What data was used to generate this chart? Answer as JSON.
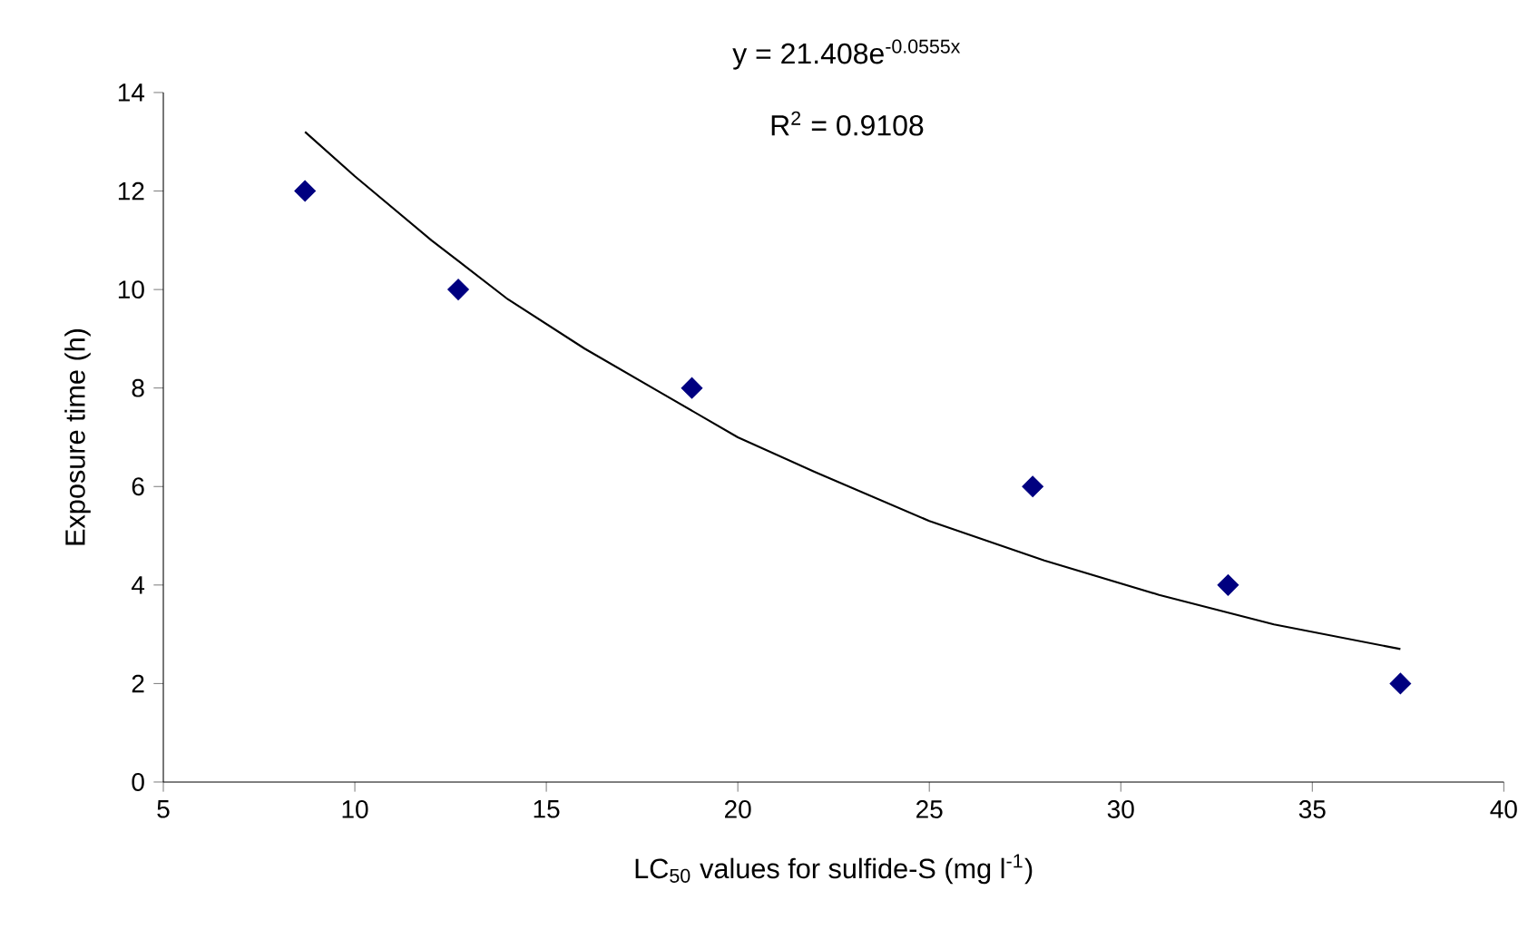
{
  "chart_data": {
    "type": "scatter",
    "xlabel": "LC$_{50}$ values for sulfide-S (mg l$^{-1}$)",
    "ylabel": "Exposure time (h)",
    "annotations": [
      "y = 21.408e$^{-0.0555x}$",
      "R$^{2}$ = 0.9108"
    ],
    "x": [
      8.7,
      12.7,
      18.8,
      27.7,
      32.8,
      37.3
    ],
    "series": [
      {
        "color": "#000080",
        "marker": "diamond",
        "values": [
          12,
          10,
          8,
          6,
          4,
          2
        ]
      },
      {
        "type": "line",
        "color": "#000000",
        "marker": "none",
        "line_style": "solid",
        "x": [
          8.7,
          10,
          12,
          14,
          16,
          18,
          20,
          22,
          25,
          28,
          31,
          34,
          37.3
        ],
        "values": [
          13.2,
          12.3,
          11.0,
          9.8,
          8.8,
          7.9,
          7.0,
          6.3,
          5.3,
          4.5,
          3.8,
          3.2,
          2.7
        ]
      }
    ],
    "xlim": [
      5,
      40
    ],
    "ylim": [
      0,
      14
    ],
    "xticks": [
      5,
      10,
      15,
      20,
      25,
      30,
      35,
      40
    ],
    "yticks": [
      0,
      2,
      4,
      6,
      8,
      10,
      12,
      14
    ],
    "grid": false
  }
}
